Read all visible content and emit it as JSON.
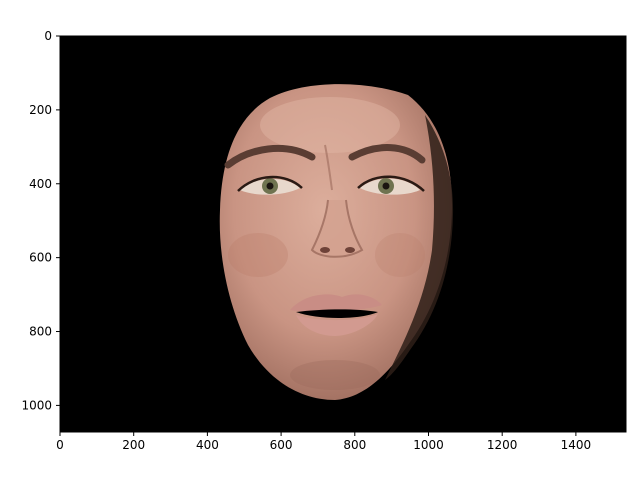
{
  "chart_data": {
    "type": "image",
    "xlim": [
      0,
      1536
    ],
    "ylim": [
      1072,
      0
    ],
    "y_axis_inverted": true,
    "x_ticks": [
      0,
      200,
      400,
      600,
      800,
      1000,
      1200,
      1400
    ],
    "y_ticks": [
      0,
      200,
      400,
      600,
      800,
      1000
    ],
    "x_tick_labels": [
      "0",
      "200",
      "400",
      "600",
      "800",
      "1000",
      "1200",
      "1400"
    ],
    "y_tick_labels": [
      "0",
      "200",
      "400",
      "600",
      "800",
      "1000"
    ],
    "grid": false,
    "image_content": {
      "background_color": "#000000",
      "face_colors": {
        "skin": "#c99483",
        "skin_light": "#dcae9c",
        "skin_shadow": "#8e5f52",
        "brow": "#5a3d33",
        "iris": "#6f7350",
        "lips": "#c98d85",
        "mouth_interior": "#000000",
        "hair": "#3a2a22"
      }
    }
  }
}
